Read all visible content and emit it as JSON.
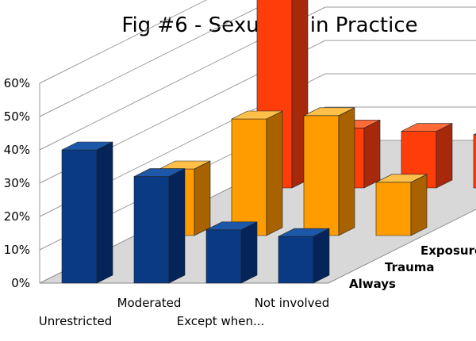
{
  "chart_data": {
    "type": "bar",
    "title": "Fig #6 - Sexuality in Practice",
    "categories": [
      "Unrestricted",
      "Moderated",
      "Except when...",
      "Not involved"
    ],
    "series": [
      {
        "name": "Always",
        "values": [
          40,
          32,
          16,
          14
        ]
      },
      {
        "name": "Trauma",
        "values": [
          20,
          35,
          36,
          16
        ]
      },
      {
        "name": "Exposure",
        "values": [
          58,
          18,
          17,
          16
        ]
      }
    ],
    "yticks": [
      "0%",
      "10%",
      "20%",
      "30%",
      "40%",
      "50%",
      "60%"
    ],
    "ylim": [
      0,
      60
    ],
    "grid": true,
    "colors": {
      "Always": [
        "#0a3a84",
        "#05245a",
        "#1d57a8"
      ],
      "Trauma": [
        "#ff9d00",
        "#a86200",
        "#ffc04a"
      ],
      "Exposure": [
        "#ff3d0a",
        "#a8280c",
        "#ff6a38"
      ],
      "floor": "#d8d8d8",
      "grid": "#999999"
    }
  }
}
